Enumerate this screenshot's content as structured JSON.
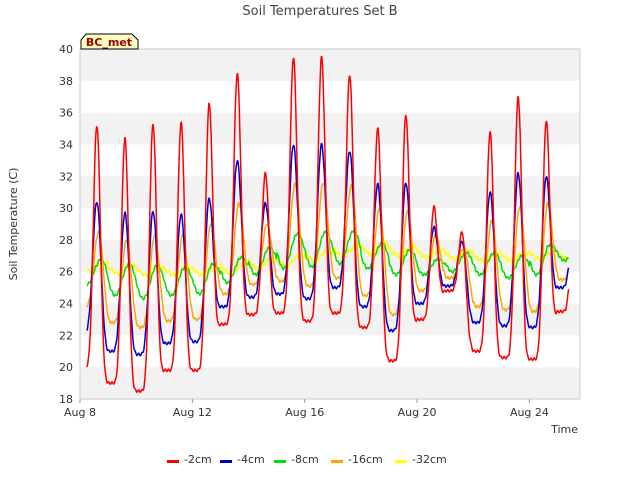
{
  "chart_data": {
    "type": "line",
    "title": "Soil Temperatures Set B",
    "site_label": "BC_met",
    "xlabel": "Time",
    "ylabel": "Soil Temperature (C)",
    "x_start": "Aug 8",
    "xlim_days": [
      8,
      25.8
    ],
    "x_ticks": [
      {
        "value": 8,
        "label": "Aug 8"
      },
      {
        "value": 12,
        "label": "Aug 12"
      },
      {
        "value": 16,
        "label": "Aug 16"
      },
      {
        "value": 20,
        "label": "Aug 20"
      },
      {
        "value": 24,
        "label": "Aug 24"
      }
    ],
    "ylim": [
      18,
      40
    ],
    "y_ticks": [
      18,
      20,
      22,
      24,
      26,
      28,
      30,
      32,
      34,
      36,
      38,
      40
    ],
    "grid": "horizontal bands",
    "legend_position": "bottom",
    "daily_peak_hour": 0.6,
    "days": [
      "Aug 8",
      "Aug 9",
      "Aug 10",
      "Aug 11",
      "Aug 12",
      "Aug 13",
      "Aug 14",
      "Aug 15",
      "Aug 16",
      "Aug 17",
      "Aug 18",
      "Aug 19",
      "Aug 20",
      "Aug 21",
      "Aug 22",
      "Aug 23",
      "Aug 24",
      "Aug 25"
    ],
    "series": [
      {
        "name": "-2cm",
        "color": "#ff0000",
        "daily_max": [
          35.2,
          34.4,
          35.3,
          35.4,
          36.6,
          38.5,
          32.2,
          39.5,
          39.5,
          38.4,
          35.0,
          35.9,
          30.1,
          28.5,
          34.8,
          37.0,
          35.5,
          30.0
        ],
        "daily_min": [
          20.0,
          19.0,
          18.5,
          19.8,
          19.8,
          22.7,
          23.3,
          23.4,
          22.9,
          23.4,
          22.5,
          20.4,
          23.0,
          24.8,
          21.0,
          20.6,
          20.5,
          23.5
        ]
      },
      {
        "name": "-4cm",
        "color": "#0000cc",
        "daily_max": [
          30.4,
          29.7,
          29.8,
          29.6,
          30.6,
          33.0,
          30.3,
          34.0,
          34.0,
          33.6,
          31.5,
          31.6,
          28.8,
          27.9,
          31.0,
          32.2,
          32.0,
          29.0
        ],
        "daily_min": [
          22.2,
          21.0,
          20.8,
          21.5,
          21.6,
          23.8,
          24.4,
          24.6,
          24.3,
          25.0,
          23.8,
          22.3,
          24.0,
          25.1,
          22.8,
          22.6,
          22.5,
          25.0
        ]
      },
      {
        "name": "-8cm",
        "color": "#00dd00",
        "daily_max": [
          26.8,
          26.5,
          26.4,
          26.3,
          26.5,
          26.9,
          27.5,
          28.4,
          28.5,
          28.6,
          27.8,
          27.4,
          26.8,
          27.2,
          27.2,
          27.0,
          27.7,
          27.6
        ],
        "daily_min": [
          25.2,
          24.5,
          24.3,
          24.5,
          24.6,
          25.3,
          25.8,
          26.2,
          26.3,
          26.5,
          26.2,
          25.8,
          25.8,
          26.0,
          25.8,
          25.6,
          25.8,
          26.7
        ]
      },
      {
        "name": "-16cm",
        "color": "#ffa500",
        "daily_max": [
          28.5,
          28.0,
          28.3,
          28.3,
          29.0,
          30.3,
          29.0,
          31.5,
          31.6,
          31.4,
          30.0,
          29.8,
          28.3,
          27.5,
          29.2,
          30.1,
          30.3,
          28.0
        ],
        "daily_min": [
          23.8,
          22.8,
          22.5,
          22.9,
          23.0,
          24.6,
          25.2,
          25.4,
          25.1,
          25.6,
          24.5,
          23.3,
          24.8,
          25.6,
          23.8,
          23.6,
          23.5,
          25.5
        ]
      },
      {
        "name": "-32cm",
        "color": "#ffff00",
        "daily_max": [
          26.6,
          26.4,
          26.3,
          26.3,
          26.3,
          26.5,
          26.8,
          27.0,
          27.3,
          27.6,
          27.8,
          27.6,
          27.4,
          27.3,
          27.2,
          27.2,
          27.3,
          27.3
        ],
        "daily_min": [
          26.0,
          25.9,
          25.8,
          25.8,
          25.8,
          25.9,
          26.2,
          26.4,
          26.7,
          27.0,
          27.1,
          27.0,
          26.9,
          26.8,
          26.7,
          26.7,
          26.8,
          26.8
        ]
      }
    ]
  }
}
